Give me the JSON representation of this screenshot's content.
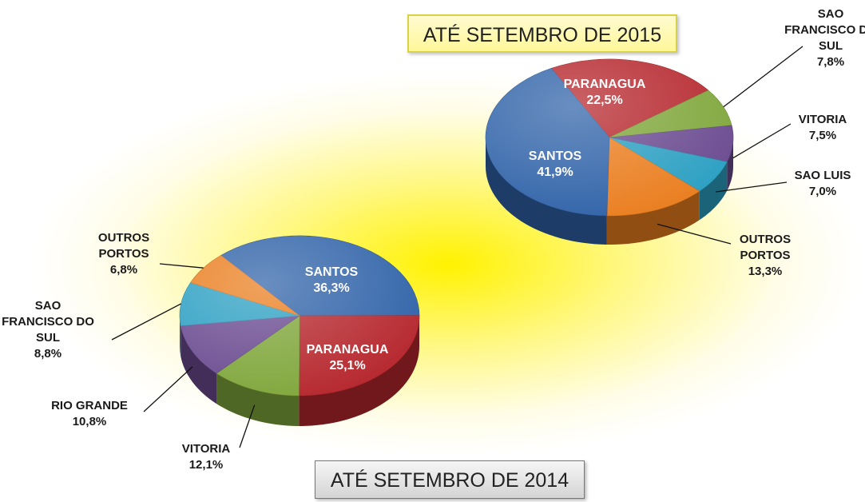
{
  "chart_data": [
    {
      "type": "pie",
      "title": "ATÉ SETEMBRO DE 2015",
      "categories": [
        "PARANAGUA",
        "SAO FRANCISCO DO SUL",
        "VITORIA",
        "SAO LUIS",
        "OUTROS PORTOS",
        "SANTOS"
      ],
      "values": [
        22.5,
        7.8,
        7.5,
        7.0,
        13.3,
        41.9
      ],
      "value_labels": [
        "22,5%",
        "7,8%",
        "7,5%",
        "7,0%",
        "13,3%",
        "41,9%"
      ],
      "colors": [
        "#b5262c",
        "#7fa63a",
        "#6a4a90",
        "#2b9fc2",
        "#ea7d1e",
        "#2f62a8"
      ]
    },
    {
      "type": "pie",
      "title": "ATÉ SETEMBRO DE 2014",
      "categories": [
        "SANTOS",
        "PARANAGUA",
        "VITORIA",
        "RIO GRANDE",
        "SAO FRANCISCO DO SUL",
        "OUTROS PORTOS"
      ],
      "values": [
        36.3,
        25.1,
        12.1,
        10.8,
        8.8,
        6.8
      ],
      "value_labels": [
        "36,3%",
        "25,1%",
        "12,1%",
        "10,8%",
        "8,8%",
        "6,8%"
      ],
      "colors": [
        "#2f62a8",
        "#b5262c",
        "#7fa63a",
        "#6a4a90",
        "#2b9fc2",
        "#ea7d1e"
      ]
    }
  ]
}
